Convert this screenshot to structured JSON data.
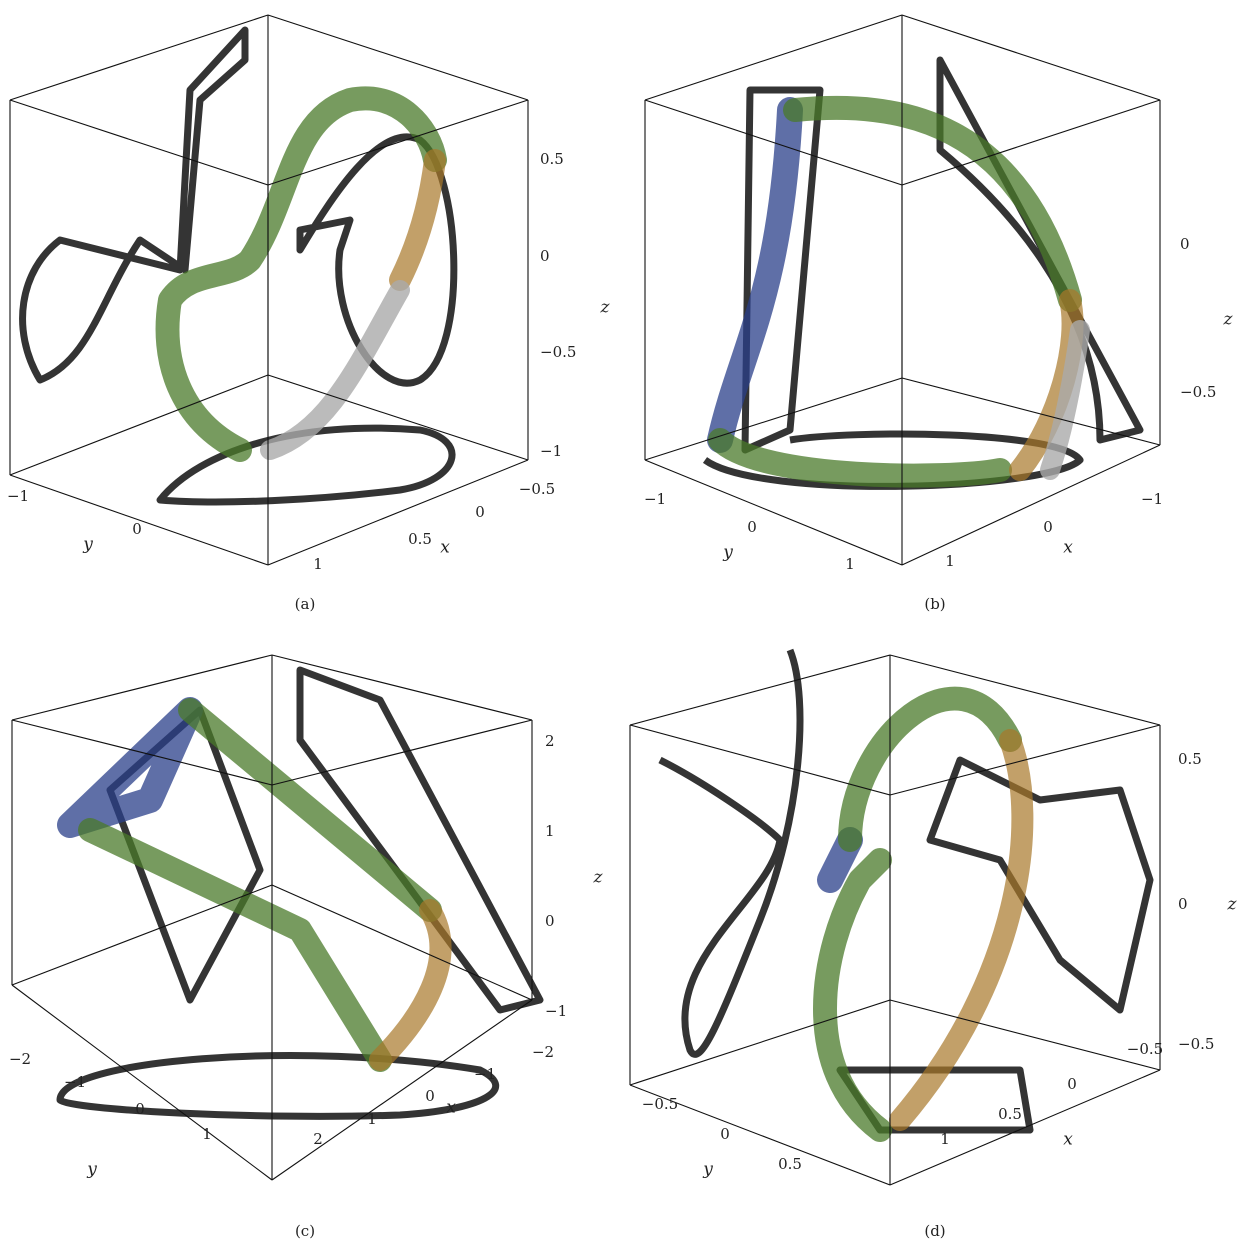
{
  "panels": [
    {
      "caption": "(a)",
      "x_label": "x",
      "y_label": "y",
      "z_label": "z",
      "x_ticks": [
        "−0.5",
        "0",
        "0.5",
        "1"
      ],
      "y_ticks": [
        "−1",
        "0"
      ],
      "z_ticks": [
        "0.5",
        "0",
        "−0.5",
        "−1"
      ]
    },
    {
      "caption": "(b)",
      "x_label": "x",
      "y_label": "y",
      "z_label": "z",
      "x_ticks": [
        "−1",
        "0",
        "1"
      ],
      "y_ticks": [
        "−1",
        "0",
        "1"
      ],
      "z_ticks": [
        "0",
        "−0.5"
      ]
    },
    {
      "caption": "(c)",
      "x_label": "x",
      "y_label": "y",
      "z_label": "z",
      "x_ticks": [
        "−2",
        "−1",
        "0",
        "1",
        "2"
      ],
      "y_ticks": [
        "−2",
        "−1",
        "0",
        "1"
      ],
      "z_ticks": [
        "2",
        "1",
        "0",
        "−1"
      ]
    },
    {
      "caption": "(d)",
      "x_label": "x",
      "y_label": "y",
      "z_label": "z",
      "x_ticks": [
        "−0.5",
        "0",
        "0.5",
        "1"
      ],
      "y_ticks": [
        "−0.5",
        "0",
        "0.5"
      ],
      "z_ticks": [
        "0.5",
        "0",
        "−0.5"
      ]
    }
  ]
}
